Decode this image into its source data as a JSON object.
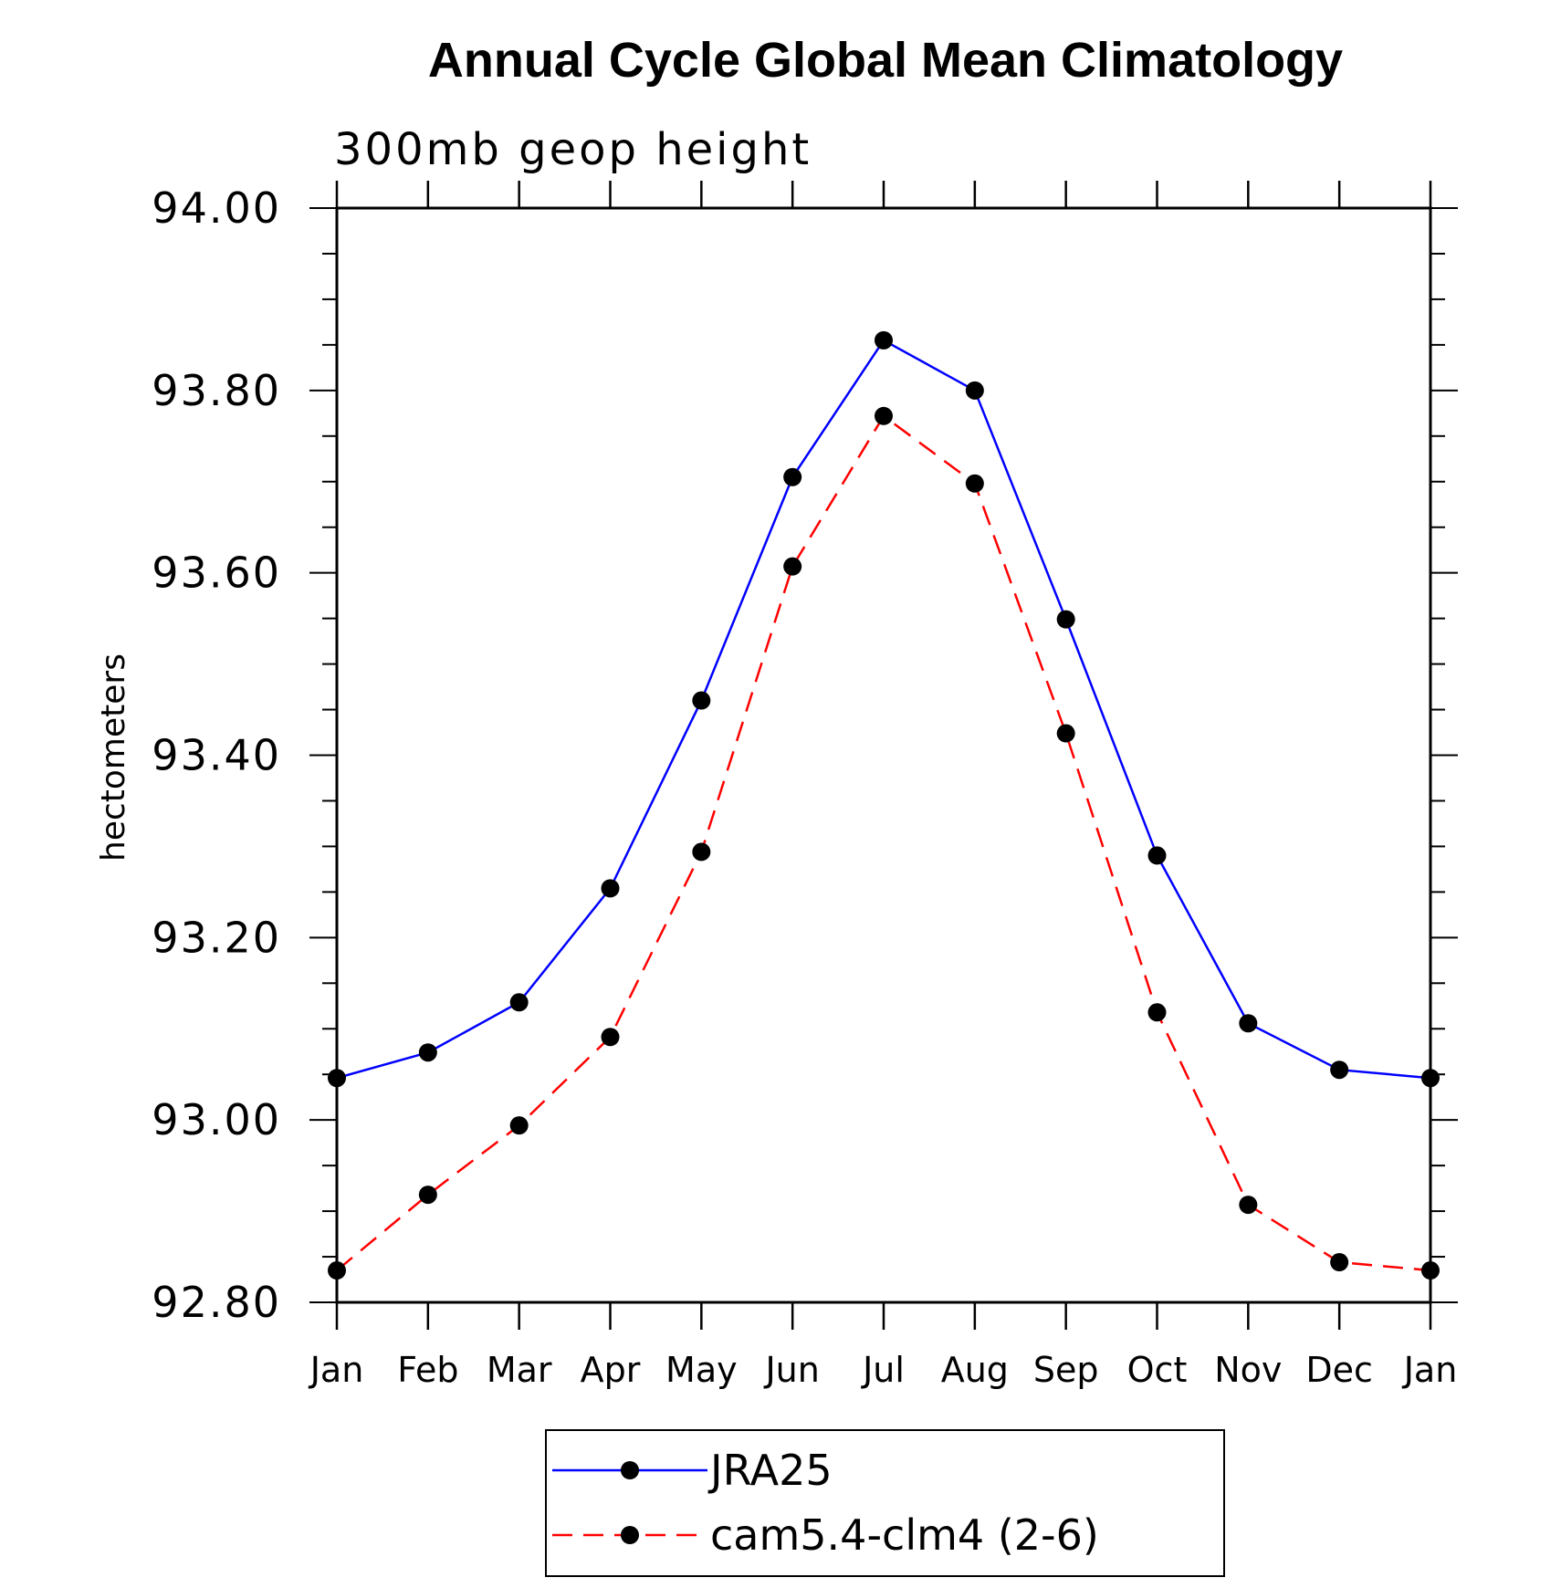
{
  "chart_data": {
    "type": "line",
    "title": "Annual Cycle Global Mean Climatology",
    "subtitle": "300mb geop height",
    "xlabel": "",
    "ylabel": "hectometers",
    "categories": [
      "Jan",
      "Feb",
      "Mar",
      "Apr",
      "May",
      "Jun",
      "Jul",
      "Aug",
      "Sep",
      "Oct",
      "Nov",
      "Dec",
      "Jan"
    ],
    "ylim": [
      92.8,
      94.0
    ],
    "yticks": [
      "92.80",
      "93.00",
      "93.20",
      "93.40",
      "93.60",
      "93.80",
      "94.00"
    ],
    "grid": false,
    "legend_position": "bottom-center",
    "series": [
      {
        "name": "JRA25",
        "color": "#0000ff",
        "dash": "solid",
        "marker": "filled-circle",
        "values": [
          93.046,
          93.074,
          93.129,
          93.254,
          93.46,
          93.705,
          93.855,
          93.8,
          93.549,
          93.29,
          93.106,
          93.055,
          93.046
        ]
      },
      {
        "name": "cam5.4-clm4 (2-6)",
        "color": "#ff0000",
        "dash": "dashed",
        "marker": "filled-circle",
        "values": [
          92.835,
          92.918,
          92.994,
          93.091,
          93.294,
          93.607,
          93.772,
          93.698,
          93.424,
          93.118,
          92.907,
          92.844,
          92.835
        ]
      }
    ]
  }
}
